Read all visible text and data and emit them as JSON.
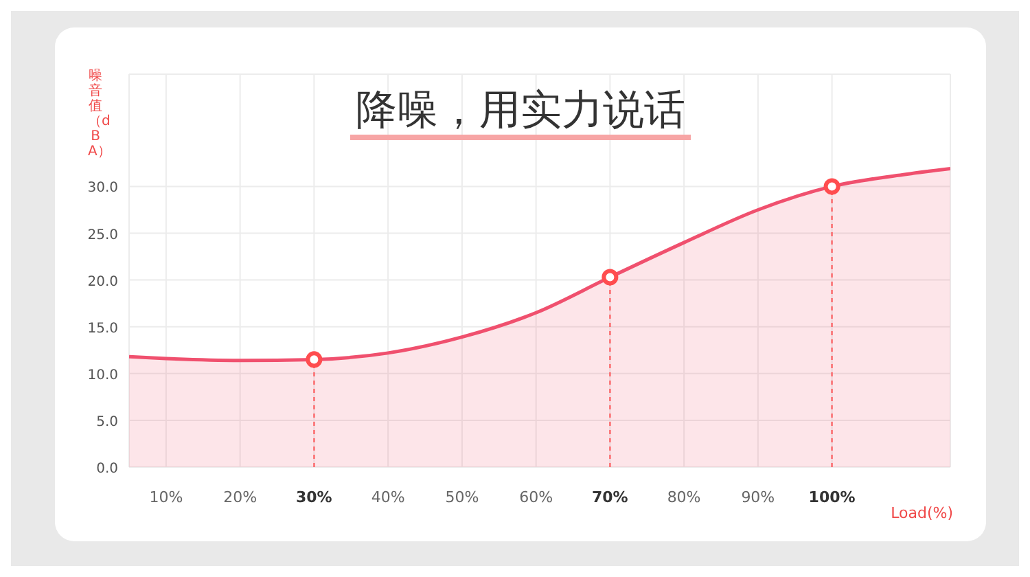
{
  "chart_data": {
    "type": "area",
    "title": "降噪，用实力说话",
    "xlabel": "Load(%)",
    "ylabel": "噪音值（dBA）",
    "xlim": [
      5,
      116
    ],
    "xticks": [
      {
        "value": 10,
        "label": "10%"
      },
      {
        "value": 20,
        "label": "20%"
      },
      {
        "value": 30,
        "label": "30%"
      },
      {
        "value": 40,
        "label": "40%"
      },
      {
        "value": 50,
        "label": "50%"
      },
      {
        "value": 60,
        "label": "60%"
      },
      {
        "value": 70,
        "label": "70%"
      },
      {
        "value": 80,
        "label": "80%"
      },
      {
        "value": 90,
        "label": "90%"
      },
      {
        "value": 100,
        "label": "100%"
      }
    ],
    "ylim": [
      0,
      42
    ],
    "yticks": [
      {
        "value": 0,
        "label": "0.0"
      },
      {
        "value": 5,
        "label": "5.0"
      },
      {
        "value": 10,
        "label": "10.0"
      },
      {
        "value": 15,
        "label": "15.0"
      },
      {
        "value": 20,
        "label": "20.0"
      },
      {
        "value": 25,
        "label": "25.0"
      },
      {
        "value": 30,
        "label": "30.0"
      }
    ],
    "grid": true,
    "ref_lines": [
      {
        "axis": "x",
        "value": 30,
        "color": "#ff4d4f",
        "line_style": "dashed"
      },
      {
        "axis": "x",
        "value": 70,
        "color": "#ff4d4f",
        "line_style": "dashed"
      },
      {
        "axis": "x",
        "value": 100,
        "color": "#ff4d4f",
        "line_style": "dashed"
      }
    ],
    "series": [
      {
        "color": "#f0506e",
        "x": [
          5,
          10,
          20,
          30,
          40,
          50,
          60,
          70,
          80,
          90,
          100,
          110,
          116
        ],
        "values": [
          11.8,
          11.6,
          11.4,
          11.5,
          12.2,
          13.9,
          16.5,
          20.3,
          24.0,
          27.5,
          30.0,
          31.3,
          31.9
        ]
      },
      {
        "type": "scatter",
        "color": "#ff4d4f",
        "marker": "circle",
        "x": [
          30,
          70,
          100
        ],
        "values": [
          11.5,
          20.3,
          30.0
        ]
      }
    ]
  }
}
